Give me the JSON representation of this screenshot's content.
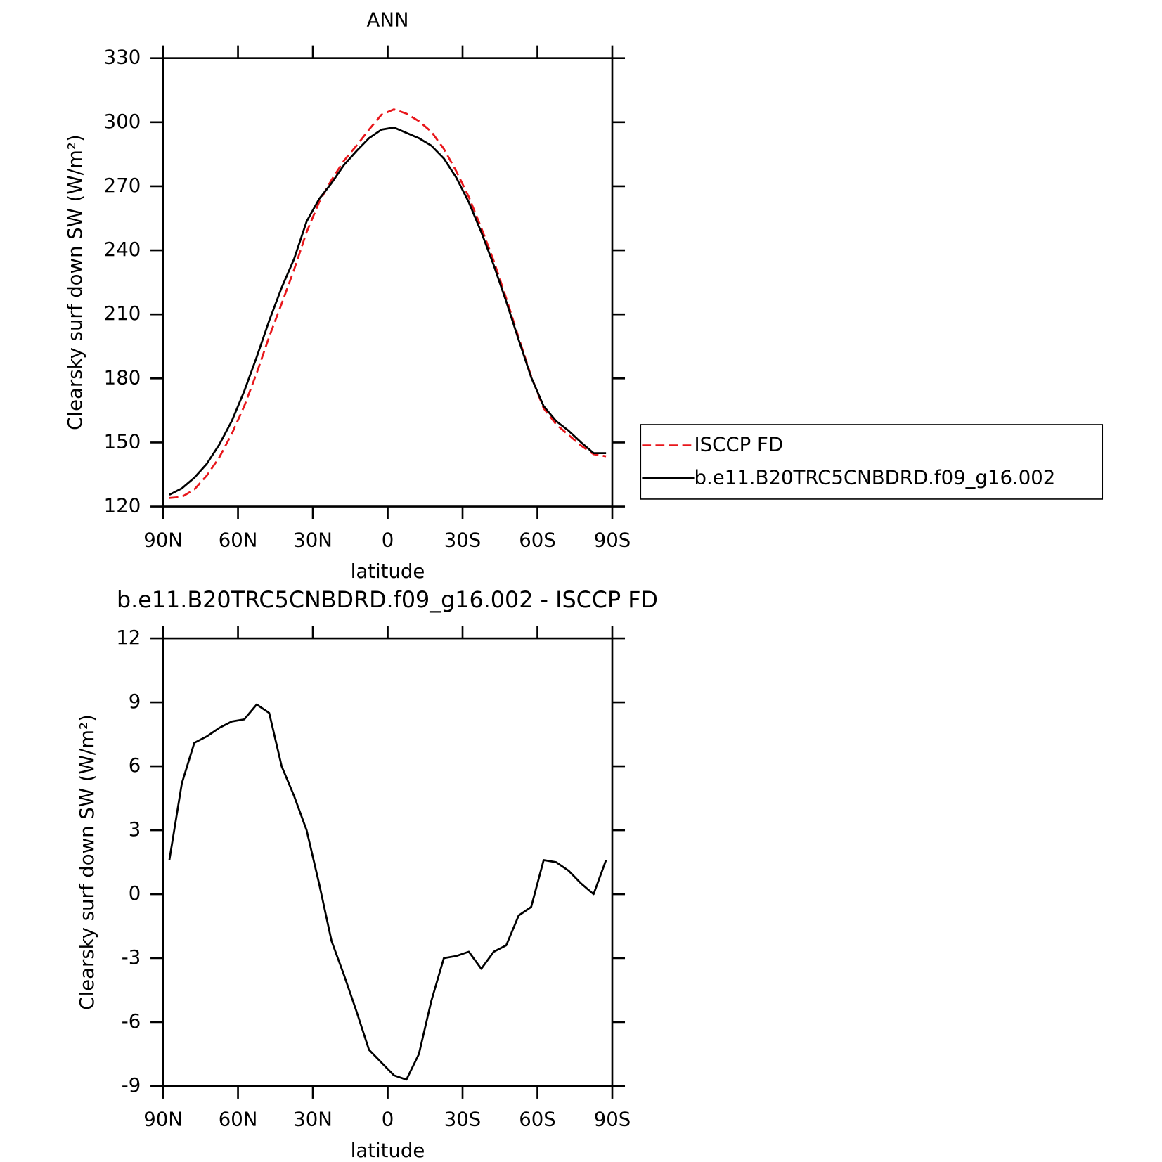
{
  "chart_data": [
    {
      "type": "line",
      "title": "ANN",
      "xlabel": "latitude",
      "ylabel": "Clearsky surf down SW (W/m²)",
      "x": [
        87.5,
        82.5,
        77.5,
        72.5,
        67.5,
        62.5,
        57.5,
        52.5,
        47.5,
        42.5,
        37.5,
        32.5,
        27.5,
        22.5,
        17.5,
        12.5,
        7.5,
        2.5,
        -2.5,
        -7.5,
        -12.5,
        -17.5,
        -22.5,
        -27.5,
        -32.5,
        -37.5,
        -42.5,
        -47.5,
        -52.5,
        -57.5,
        -62.5,
        -67.5,
        -72.5,
        -77.5,
        -82.5,
        -87.5
      ],
      "series": [
        {
          "name": "ISCCP FD",
          "color": "#e8161b",
          "dash": true,
          "values": [
            124,
            124.5,
            128,
            134.5,
            143,
            154,
            167,
            182.5,
            199.5,
            215,
            231,
            248.5,
            262.5,
            273,
            282,
            289,
            296.5,
            303.5,
            306,
            304,
            300.5,
            295.5,
            287.5,
            277,
            265,
            250.5,
            235,
            217.5,
            199,
            181,
            166,
            158.5,
            153.5,
            148.5,
            144.5,
            143.5
          ]
        },
        {
          "name": "b.e11.B20TRC5CNBDRD.f09_g16.002",
          "color": "#000000",
          "dash": false,
          "values": [
            125.5,
            128.5,
            133.5,
            140,
            149,
            160,
            174,
            190,
            207,
            222.5,
            236,
            253.5,
            264,
            271.5,
            280,
            286.5,
            292.5,
            296.5,
            297.5,
            295,
            292.5,
            289,
            283,
            274,
            262.5,
            248.5,
            233,
            216,
            198,
            180.5,
            167,
            160,
            155.5,
            150,
            145,
            145
          ]
        }
      ],
      "xlim": [
        90,
        -90
      ],
      "xticks": [
        {
          "value": 90,
          "label": "90N"
        },
        {
          "value": 60,
          "label": "60N"
        },
        {
          "value": 30,
          "label": "30N"
        },
        0,
        {
          "value": -30,
          "label": "30S"
        },
        {
          "value": -60,
          "label": "60S"
        },
        {
          "value": -90,
          "label": "90S"
        }
      ],
      "ylim": [
        120,
        330
      ],
      "yticks": [
        120,
        150,
        180,
        210,
        240,
        270,
        300,
        330
      ],
      "legend": "right"
    },
    {
      "type": "line",
      "title": "b.e11.B20TRC5CNBDRD.f09_g16.002 - ISCCP FD",
      "xlabel": "latitude",
      "ylabel": "Clearsky surf down SW (W/m²)",
      "x": [
        87.5,
        82.5,
        77.5,
        72.5,
        67.5,
        62.5,
        57.5,
        52.5,
        47.5,
        42.5,
        37.5,
        32.5,
        27.5,
        22.5,
        17.5,
        12.5,
        7.5,
        2.5,
        -2.5,
        -7.5,
        -12.5,
        -17.5,
        -22.5,
        -27.5,
        -32.5,
        -37.5,
        -42.5,
        -47.5,
        -52.5,
        -57.5,
        -62.5,
        -67.5,
        -72.5,
        -77.5,
        -82.5,
        -87.5
      ],
      "series": [
        {
          "color": "#000000",
          "dash": false,
          "values": [
            1.6,
            5.2,
            7.1,
            7.4,
            7.8,
            8.1,
            8.2,
            8.9,
            8.5,
            6.0,
            4.6,
            3.0,
            0.5,
            -2.2,
            -3.8,
            -5.5,
            -7.3,
            -7.9,
            -8.5,
            -8.7,
            -7.5,
            -5.0,
            -3.0,
            -2.9,
            -2.7,
            -3.5,
            -2.7,
            -2.4,
            -1.0,
            -0.6,
            1.6,
            1.5,
            1.1,
            0.5,
            0.0,
            1.6
          ]
        }
      ],
      "xlim": [
        90,
        -90
      ],
      "xticks": [
        {
          "value": 90,
          "label": "90N"
        },
        {
          "value": 60,
          "label": "60N"
        },
        {
          "value": 30,
          "label": "30N"
        },
        0,
        {
          "value": -30,
          "label": "30S"
        },
        {
          "value": -60,
          "label": "60S"
        },
        {
          "value": -90,
          "label": "90S"
        }
      ],
      "ylim": [
        -9,
        12
      ],
      "yticks": [
        -9,
        -6,
        -3,
        0,
        3,
        6,
        9,
        12
      ]
    }
  ]
}
